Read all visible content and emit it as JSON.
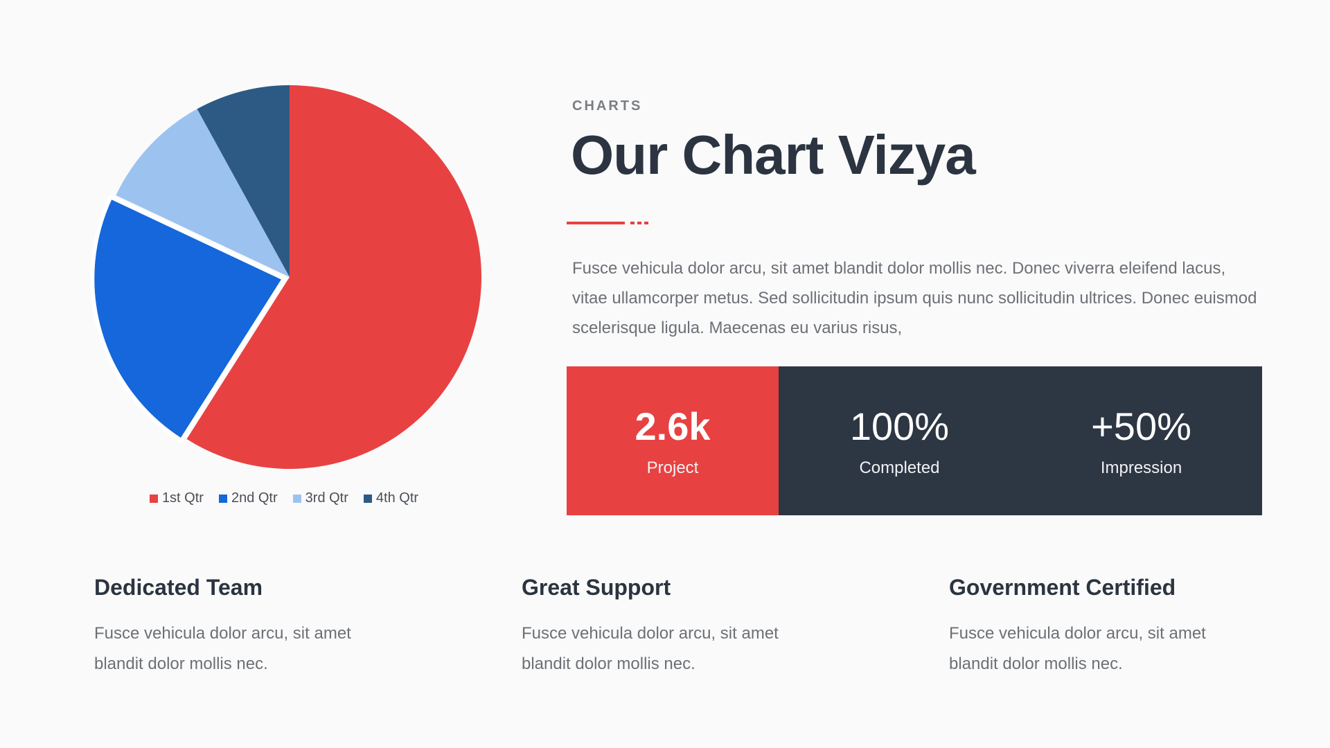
{
  "header": {
    "eyebrow": "CHARTS",
    "title": "Our Chart Vizya",
    "intro": "Fusce vehicula dolor arcu, sit amet blandit dolor mollis nec. Donec viverra eleifend lacus, vitae ullamcorper metus. Sed sollicitudin ipsum quis nunc sollicitudin ultrices. Donec euismod scelerisque ligula. Maecenas eu varius risus,"
  },
  "colors": {
    "accent": "#e84142",
    "dark": "#2d3643",
    "q1": "#e84142",
    "q2": "#1567db",
    "q3": "#9cc3f0",
    "q4": "#2d5a85"
  },
  "chart_data": {
    "type": "pie",
    "categories": [
      "1st Qtr",
      "2nd Qtr",
      "3rd Qtr",
      "4th Qtr"
    ],
    "values": [
      59,
      23,
      10,
      8
    ],
    "exploded_index": 1,
    "legend_position": "bottom-center",
    "title": ""
  },
  "stats": [
    {
      "value": "2.6k",
      "label": "Project"
    },
    {
      "value": "100%",
      "label": "Completed"
    },
    {
      "value": "+50%",
      "label": "Impression"
    }
  ],
  "features": [
    {
      "title": "Dedicated Team",
      "text": "Fusce vehicula dolor arcu, sit amet blandit dolor mollis nec."
    },
    {
      "title": "Great Support",
      "text": "Fusce vehicula dolor arcu, sit amet blandit dolor mollis nec."
    },
    {
      "title": "Government Certified",
      "text": "Fusce vehicula dolor arcu, sit amet blandit dolor mollis nec."
    }
  ]
}
